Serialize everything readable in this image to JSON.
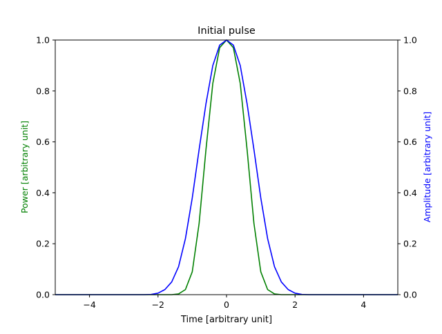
{
  "chart_data": {
    "type": "line",
    "title": "Initial pulse",
    "xlabel": "Time [arbitrary unit]",
    "ylabel_left": "Power [arbitrary unit]",
    "ylabel_right": "Amplitude [arbitrary unit]",
    "xlim": [
      -5,
      5
    ],
    "ylim": [
      0,
      1
    ],
    "x_ticks": [
      -4,
      -2,
      0,
      2,
      4
    ],
    "x_tick_labels": [
      "−4",
      "−2",
      "0",
      "2",
      "4"
    ],
    "y_ticks": [
      0,
      0.2,
      0.4,
      0.6,
      0.8,
      1.0
    ],
    "y_tick_labels": [
      "0.0",
      "0.2",
      "0.4",
      "0.6",
      "0.8",
      "1.0"
    ],
    "grid": false,
    "colors": {
      "left_axis_label": "#008000",
      "right_axis_label": "#0000ff"
    },
    "series": [
      {
        "color": "#008000",
        "axis": "left",
        "x": [
          -5.0,
          -4.8,
          -4.6,
          -4.4,
          -4.2,
          -4.0,
          -3.8,
          -3.6,
          -3.4,
          -3.2,
          -3.0,
          -2.8,
          -2.6,
          -2.4,
          -2.2,
          -2.0,
          -1.8,
          -1.6,
          -1.4,
          -1.2,
          -1.0,
          -0.8,
          -0.6,
          -0.4,
          -0.2,
          0.0,
          0.2,
          0.4,
          0.6,
          0.8,
          1.0,
          1.2,
          1.4,
          1.6,
          1.8,
          2.0,
          2.2,
          2.4,
          2.6,
          2.8,
          3.0,
          3.2,
          3.4,
          3.6,
          3.8,
          4.0,
          4.2,
          4.4,
          4.6,
          4.8,
          5.0
        ],
        "values": [
          0,
          0,
          0,
          0,
          0,
          0,
          0,
          0,
          0,
          0,
          0,
          0,
          0,
          0,
          0,
          0,
          0,
          0,
          0.003,
          0.02,
          0.09,
          0.28,
          0.57,
          0.83,
          0.97,
          1.0,
          0.97,
          0.83,
          0.57,
          0.28,
          0.09,
          0.02,
          0.003,
          0,
          0,
          0,
          0,
          0,
          0,
          0,
          0,
          0,
          0,
          0,
          0,
          0,
          0,
          0,
          0,
          0,
          0
        ]
      },
      {
        "color": "#0000ff",
        "axis": "right",
        "x": [
          -5.0,
          -4.8,
          -4.6,
          -4.4,
          -4.2,
          -4.0,
          -3.8,
          -3.6,
          -3.4,
          -3.2,
          -3.0,
          -2.8,
          -2.6,
          -2.4,
          -2.2,
          -2.0,
          -1.8,
          -1.6,
          -1.4,
          -1.2,
          -1.0,
          -0.8,
          -0.6,
          -0.4,
          -0.2,
          0.0,
          0.2,
          0.4,
          0.6,
          0.8,
          1.0,
          1.2,
          1.4,
          1.6,
          1.8,
          2.0,
          2.2,
          2.4,
          2.6,
          2.8,
          3.0,
          3.2,
          3.4,
          3.6,
          3.8,
          4.0,
          4.2,
          4.4,
          4.6,
          4.8,
          5.0
        ],
        "values": [
          0,
          0,
          0,
          0,
          0,
          0,
          0,
          0,
          0,
          0,
          0,
          0,
          0,
          0,
          0.001,
          0.006,
          0.02,
          0.05,
          0.11,
          0.22,
          0.38,
          0.57,
          0.75,
          0.9,
          0.98,
          1.0,
          0.98,
          0.9,
          0.75,
          0.57,
          0.38,
          0.22,
          0.11,
          0.05,
          0.02,
          0.006,
          0.001,
          0,
          0,
          0,
          0,
          0,
          0,
          0,
          0,
          0,
          0,
          0,
          0,
          0,
          0
        ]
      }
    ]
  }
}
